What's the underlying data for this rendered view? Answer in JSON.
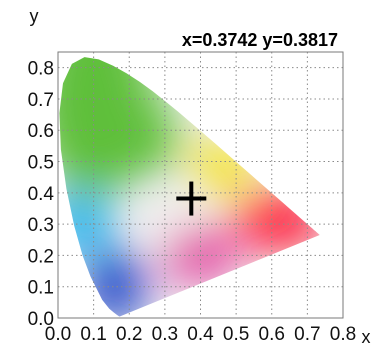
{
  "chart_data": {
    "type": "scatter",
    "title": "",
    "xlabel": "x",
    "ylabel": "y",
    "xlim": [
      0.0,
      0.8
    ],
    "ylim": [
      0.0,
      0.85
    ],
    "x_ticks": [
      "0.0",
      "0.1",
      "0.2",
      "0.3",
      "0.4",
      "0.5",
      "0.6",
      "0.7",
      "0.8"
    ],
    "y_ticks": [
      "0.0",
      "0.1",
      "0.2",
      "0.3",
      "0.4",
      "0.5",
      "0.6",
      "0.7",
      "0.8"
    ],
    "grid": true,
    "readout": "x=0.3742 y=0.3817",
    "marker": {
      "x": 0.3742,
      "y": 0.3817,
      "shape": "cross"
    },
    "gamut_colors": {
      "green": "#5fbf3a",
      "yellow": "#f4e21a",
      "red": "#ff1b3b",
      "magenta": "#e0389a",
      "blue": "#2244c8",
      "cyan": "#2ab5ef",
      "white": "#f2f2f2"
    },
    "spectral_locus": [
      [
        0.1741,
        0.005
      ],
      [
        0.1733,
        0.0048
      ],
      [
        0.1726,
        0.0048
      ],
      [
        0.1714,
        0.0051
      ],
      [
        0.1689,
        0.0069
      ],
      [
        0.1644,
        0.0109
      ],
      [
        0.1566,
        0.0177
      ],
      [
        0.144,
        0.0297
      ],
      [
        0.1241,
        0.0578
      ],
      [
        0.0913,
        0.1327
      ],
      [
        0.0687,
        0.2007
      ],
      [
        0.0454,
        0.295
      ],
      [
        0.0235,
        0.4127
      ],
      [
        0.0082,
        0.5384
      ],
      [
        0.0039,
        0.6548
      ],
      [
        0.0139,
        0.7502
      ],
      [
        0.0389,
        0.812
      ],
      [
        0.0743,
        0.8338
      ],
      [
        0.1142,
        0.8262
      ],
      [
        0.1547,
        0.8059
      ],
      [
        0.1929,
        0.7816
      ],
      [
        0.2296,
        0.7543
      ],
      [
        0.2658,
        0.7243
      ],
      [
        0.3016,
        0.6923
      ],
      [
        0.3373,
        0.6589
      ],
      [
        0.3731,
        0.6245
      ],
      [
        0.4087,
        0.5896
      ],
      [
        0.4441,
        0.5547
      ],
      [
        0.4788,
        0.5202
      ],
      [
        0.5125,
        0.4866
      ],
      [
        0.5448,
        0.4544
      ],
      [
        0.5752,
        0.4242
      ],
      [
        0.6029,
        0.3965
      ],
      [
        0.627,
        0.3725
      ],
      [
        0.6482,
        0.3514
      ],
      [
        0.6658,
        0.334
      ],
      [
        0.6801,
        0.3197
      ],
      [
        0.6915,
        0.3083
      ],
      [
        0.7006,
        0.2993
      ],
      [
        0.7079,
        0.292
      ],
      [
        0.714,
        0.2859
      ],
      [
        0.719,
        0.2809
      ],
      [
        0.723,
        0.277
      ],
      [
        0.726,
        0.274
      ],
      [
        0.7283,
        0.2717
      ],
      [
        0.73,
        0.27
      ],
      [
        0.7311,
        0.2689
      ],
      [
        0.732,
        0.268
      ],
      [
        0.7327,
        0.2673
      ],
      [
        0.7334,
        0.2666
      ],
      [
        0.734,
        0.266
      ],
      [
        0.7344,
        0.2656
      ],
      [
        0.7346,
        0.2654
      ],
      [
        0.7347,
        0.2653
      ]
    ]
  }
}
